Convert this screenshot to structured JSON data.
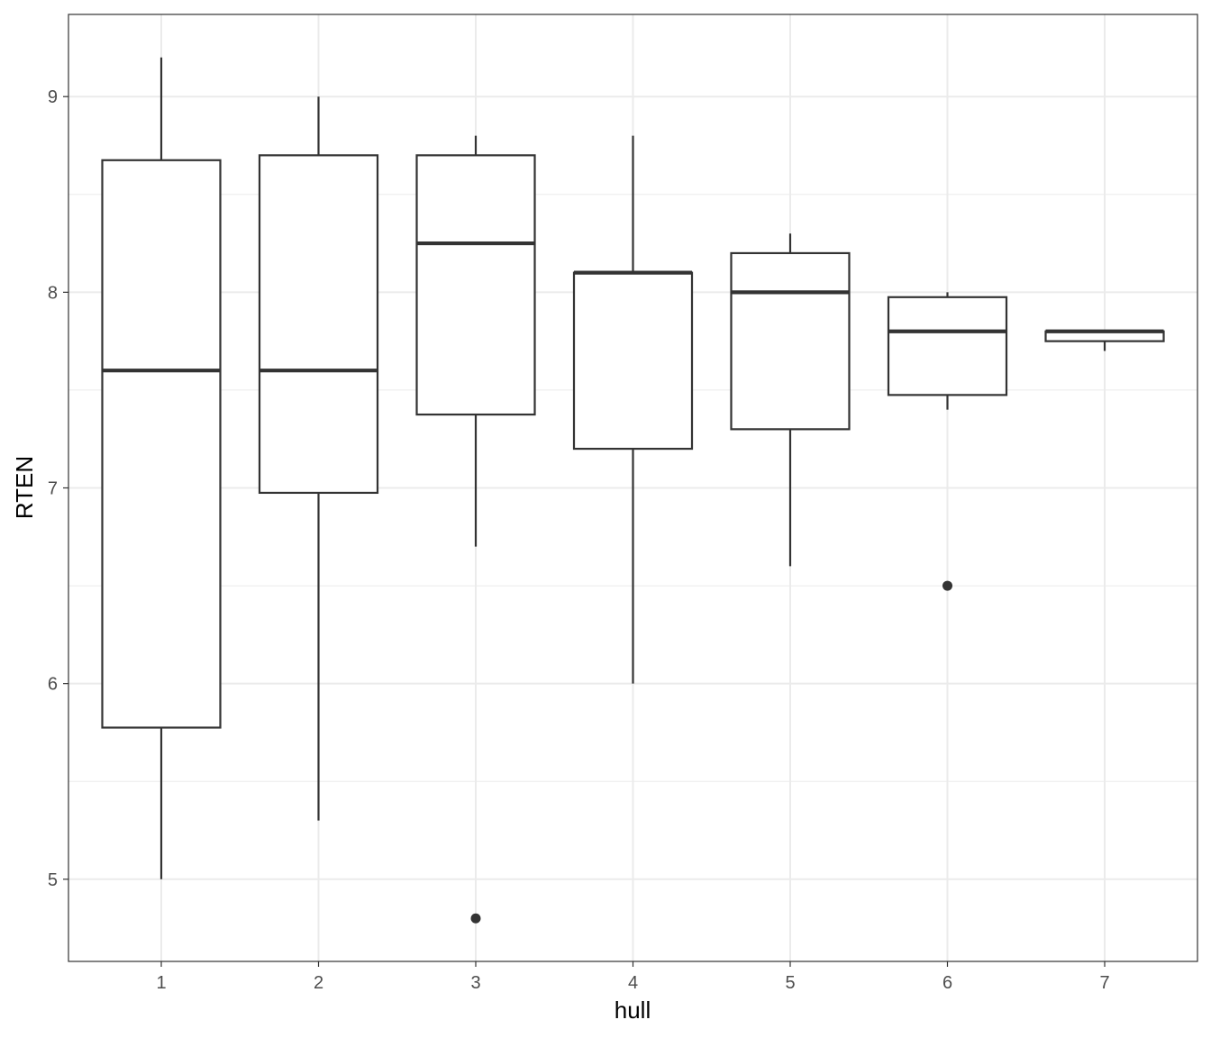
{
  "chart_data": {
    "type": "boxplot",
    "xlabel": "hull",
    "ylabel": "RTEN",
    "ylim": [
      4.58,
      9.42
    ],
    "y_ticks": [
      5,
      6,
      7,
      8,
      9
    ],
    "y_tick_labels": [
      "5",
      "6",
      "7",
      "8",
      "9"
    ],
    "categories": [
      "1",
      "2",
      "3",
      "4",
      "5",
      "6",
      "7"
    ],
    "grid": true,
    "boxes": [
      {
        "category": "1",
        "lower_whisker": 5.0,
        "q1": 5.775,
        "median": 7.6,
        "q3": 8.675,
        "upper_whisker": 9.2,
        "outliers": []
      },
      {
        "category": "2",
        "lower_whisker": 5.3,
        "q1": 6.975,
        "median": 7.6,
        "q3": 8.7,
        "upper_whisker": 9.0,
        "outliers": []
      },
      {
        "category": "3",
        "lower_whisker": 6.7,
        "q1": 7.375,
        "median": 8.25,
        "q3": 8.7,
        "upper_whisker": 8.8,
        "outliers": [
          4.8
        ]
      },
      {
        "category": "4",
        "lower_whisker": 6.0,
        "q1": 7.2,
        "median": 8.1,
        "q3": 8.1,
        "upper_whisker": 8.8,
        "outliers": []
      },
      {
        "category": "5",
        "lower_whisker": 6.6,
        "q1": 7.3,
        "median": 8.0,
        "q3": 8.2,
        "upper_whisker": 8.3,
        "outliers": []
      },
      {
        "category": "6",
        "lower_whisker": 7.4,
        "q1": 7.475,
        "median": 7.8,
        "q3": 7.975,
        "upper_whisker": 8.0,
        "outliers": [
          6.5
        ]
      },
      {
        "category": "7",
        "lower_whisker": 7.7,
        "q1": 7.75,
        "median": 7.8,
        "q3": 7.8,
        "upper_whisker": 7.8,
        "outliers": []
      }
    ],
    "colors": {
      "background": "#ffffff",
      "grid": "#ebebeb",
      "border": "#333333",
      "box": "#333333",
      "fill": "#ffffff"
    }
  }
}
